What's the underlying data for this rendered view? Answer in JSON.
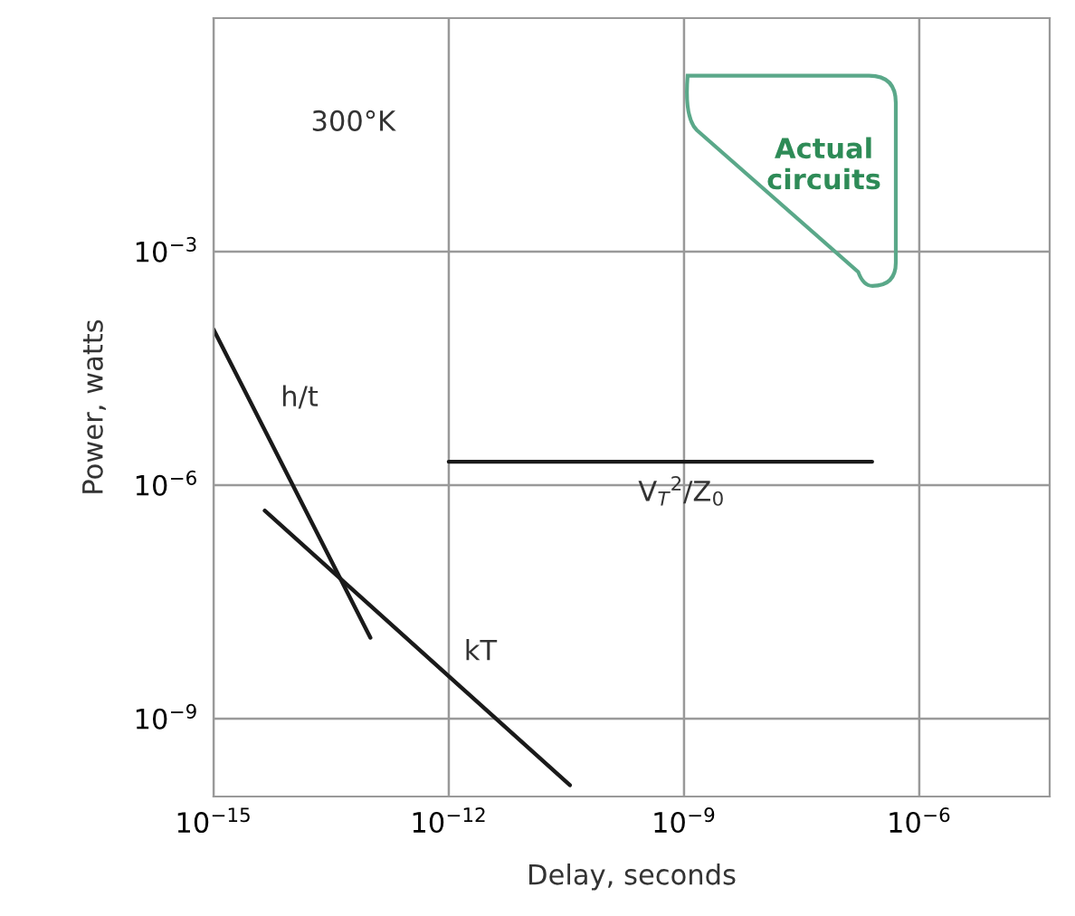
{
  "chart_data": {
    "type": "line",
    "xlabel": "Delay, seconds",
    "ylabel": "Power, watts",
    "log": "xy",
    "grid": true,
    "marker": "none",
    "line_style": "solid",
    "xlim": [
      1e-15,
      4.6e-05
    ],
    "ylim": [
      1e-10,
      1
    ],
    "xticks": [
      {
        "value": 1e-15,
        "label": "10$^{−15}$"
      },
      {
        "value": 1e-12,
        "label": "10$^{−12}$"
      },
      {
        "value": 1e-09,
        "label": "10$^{−9}$"
      },
      {
        "value": 1e-06,
        "label": "10$^{−6}$"
      }
    ],
    "yticks": [
      {
        "value": 1e-09,
        "label": "10$^{−9}$"
      },
      {
        "value": 1e-06,
        "label": "10$^{−6}$"
      },
      {
        "value": 0.001,
        "label": "10$^{−3}$"
      }
    ],
    "series": [
      {
        "name": "h/t",
        "color": "#1a1a1a",
        "x": [
          1e-15,
          1e-13
        ],
        "values": [
          0.0001,
          1.1e-08
        ]
      },
      {
        "name": "kT",
        "color": "#1a1a1a",
        "x": [
          4.5e-15,
          3.5e-11
        ],
        "values": [
          4.7e-07,
          1.4e-10
        ]
      },
      {
        "name": "V$_{T}$$^{2}$/Z$_{0}$",
        "color": "#1a1a1a",
        "x": [
          1e-12,
          2.5e-07
        ],
        "values": [
          2e-06,
          2e-06
        ]
      }
    ],
    "annotations": [
      "300°K",
      "Actual\ncircuits"
    ]
  }
}
